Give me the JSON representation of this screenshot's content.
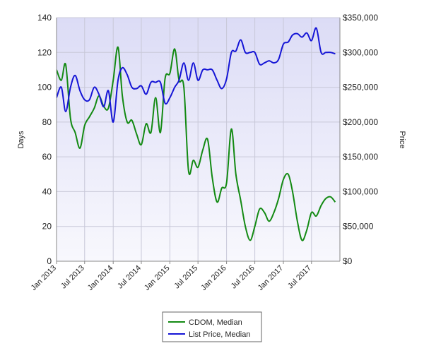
{
  "chart_data": {
    "type": "line",
    "ylabel_left": "Days",
    "ylabel_right": "Price",
    "x_tick_labels": [
      "Jan 2013",
      "Jul 2013",
      "Jan 2014",
      "Jul 2014",
      "Jan 2015",
      "Jul 2015",
      "Jan 2016",
      "Jul 2016",
      "Jan 2017",
      "Jul 2017"
    ],
    "x_range": [
      "2013-01-01",
      "2017-12-31"
    ],
    "y_left_ticks": [
      "0",
      "20",
      "40",
      "60",
      "80",
      "100",
      "120",
      "140"
    ],
    "y_left_range": [
      0,
      140
    ],
    "y_right_ticks": [
      "$0",
      "$50,000",
      "$100,000",
      "$150,000",
      "$200,000",
      "$250,000",
      "$300,000",
      "$350,000"
    ],
    "y_right_range": [
      0,
      350000
    ],
    "grid": true,
    "legend_placement": "bottom-center",
    "series": [
      {
        "name": "CDOM, Median",
        "color": "#138a13",
        "axis": "left",
        "x": [
          "2013-01-01",
          "2013-02-01",
          "2013-03-01",
          "2013-04-01",
          "2013-05-01",
          "2013-06-01",
          "2013-07-01",
          "2013-08-01",
          "2013-09-01",
          "2013-10-01",
          "2013-11-01",
          "2013-12-01",
          "2014-01-01",
          "2014-02-01",
          "2014-03-01",
          "2014-04-01",
          "2014-05-01",
          "2014-06-01",
          "2014-07-01",
          "2014-08-01",
          "2014-09-01",
          "2014-10-01",
          "2014-11-01",
          "2014-12-01",
          "2015-01-01",
          "2015-02-01",
          "2015-03-01",
          "2015-04-01",
          "2015-05-01",
          "2015-06-01",
          "2015-07-01",
          "2015-08-01",
          "2015-09-01",
          "2015-10-01",
          "2015-11-01",
          "2015-12-01",
          "2016-01-01",
          "2016-02-01",
          "2016-03-01",
          "2016-04-01",
          "2016-05-01",
          "2016-06-01",
          "2016-07-01",
          "2016-08-01",
          "2016-09-01",
          "2016-10-01",
          "2016-11-01",
          "2016-12-01",
          "2017-01-01",
          "2017-02-01",
          "2017-03-01",
          "2017-04-01",
          "2017-05-01",
          "2017-06-01",
          "2017-07-01",
          "2017-08-01",
          "2017-09-01",
          "2017-10-01",
          "2017-11-01",
          "2017-12-01"
        ],
        "values": [
          110,
          104,
          113,
          82,
          74,
          65,
          78,
          83,
          88,
          95,
          89,
          88,
          104,
          123,
          95,
          80,
          81,
          73,
          67,
          79,
          74,
          94,
          74,
          105,
          108,
          122,
          104,
          100,
          52,
          58,
          54,
          64,
          70,
          48,
          34,
          42,
          45,
          76,
          50,
          35,
          20,
          12,
          20,
          30,
          28,
          23,
          28,
          36,
          47,
          50,
          40,
          23,
          12,
          18,
          28,
          26,
          32,
          36,
          37,
          34
        ]
      },
      {
        "name": "List Price, Median",
        "color": "#1515d6",
        "axis": "right",
        "x": [
          "2013-01-01",
          "2013-02-01",
          "2013-03-01",
          "2013-04-01",
          "2013-05-01",
          "2013-06-01",
          "2013-07-01",
          "2013-08-01",
          "2013-09-01",
          "2013-10-01",
          "2013-11-01",
          "2013-12-01",
          "2014-01-01",
          "2014-02-01",
          "2014-03-01",
          "2014-04-01",
          "2014-05-01",
          "2014-06-01",
          "2014-07-01",
          "2014-08-01",
          "2014-09-01",
          "2014-10-01",
          "2014-11-01",
          "2014-12-01",
          "2015-01-01",
          "2015-02-01",
          "2015-03-01",
          "2015-04-01",
          "2015-05-01",
          "2015-06-01",
          "2015-07-01",
          "2015-08-01",
          "2015-09-01",
          "2015-10-01",
          "2015-11-01",
          "2015-12-01",
          "2016-01-01",
          "2016-02-01",
          "2016-03-01",
          "2016-04-01",
          "2016-05-01",
          "2016-06-01",
          "2016-07-01",
          "2016-08-01",
          "2016-09-01",
          "2016-10-01",
          "2016-11-01",
          "2016-12-01",
          "2017-01-01",
          "2017-02-01",
          "2017-03-01",
          "2017-04-01",
          "2017-05-01",
          "2017-06-01",
          "2017-07-01",
          "2017-08-01",
          "2017-09-01",
          "2017-10-01",
          "2017-11-01",
          "2017-12-01"
        ],
        "values": [
          235000,
          250000,
          215000,
          250000,
          267000,
          245000,
          232000,
          232000,
          250000,
          240000,
          222000,
          245000,
          200000,
          260000,
          278000,
          268000,
          250000,
          248000,
          252000,
          240000,
          257000,
          257000,
          257000,
          227000,
          235000,
          250000,
          260000,
          285000,
          260000,
          285000,
          260000,
          275000,
          275000,
          275000,
          260000,
          248000,
          262000,
          300000,
          302000,
          318000,
          300000,
          300000,
          300000,
          283000,
          285000,
          288000,
          285000,
          290000,
          312000,
          315000,
          325000,
          327000,
          322000,
          328000,
          317000,
          335000,
          300000,
          300000,
          300000,
          298000
        ]
      }
    ]
  }
}
